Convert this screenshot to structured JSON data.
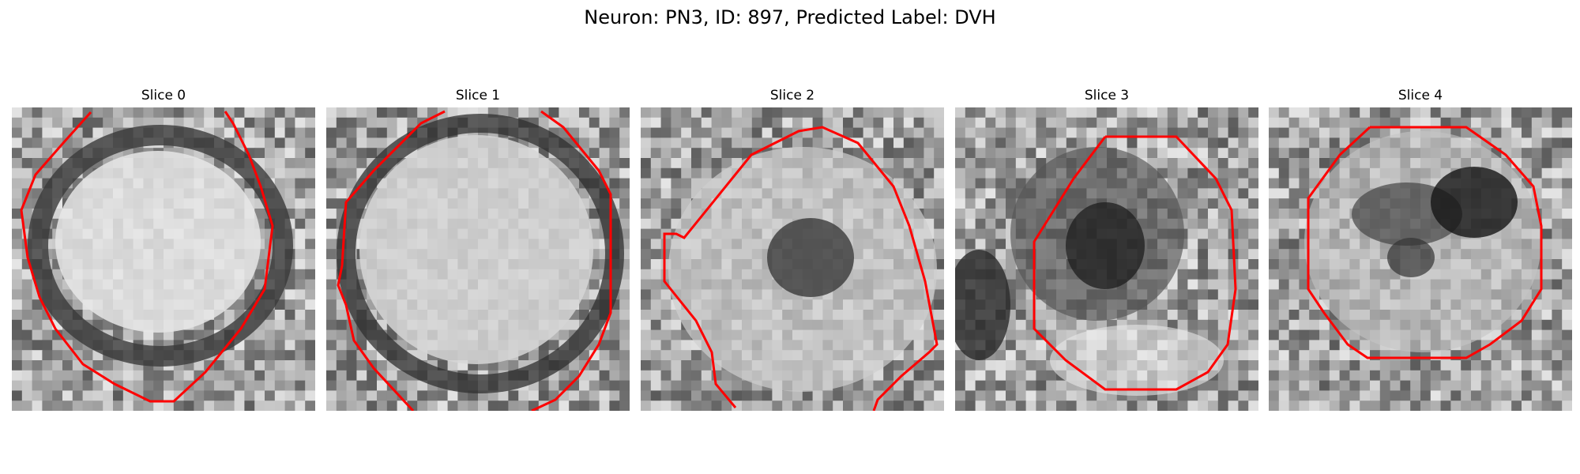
{
  "figure": {
    "title": "Neuron: PN3, ID: 897, Predicted Label: DVH"
  },
  "panels": [
    {
      "title": "Slice 0",
      "content": "grayscale EM crop, bright round cell body with dark membrane ring, red contour outline"
    },
    {
      "title": "Slice 1",
      "content": "grayscale EM crop, bright round cell body, dark membrane, red contour outline"
    },
    {
      "title": "Slice 2",
      "content": "grayscale EM crop, cell with dark center spot, red contour outline"
    },
    {
      "title": "Slice 3",
      "content": "grayscale EM crop, darker interior blob, red octagonal contour"
    },
    {
      "title": "Slice 4",
      "content": "grayscale EM crop, dark blobs in upper right, red octagonal contour"
    }
  ],
  "colors": {
    "contour": "#ff0000",
    "background": "#ffffff"
  }
}
